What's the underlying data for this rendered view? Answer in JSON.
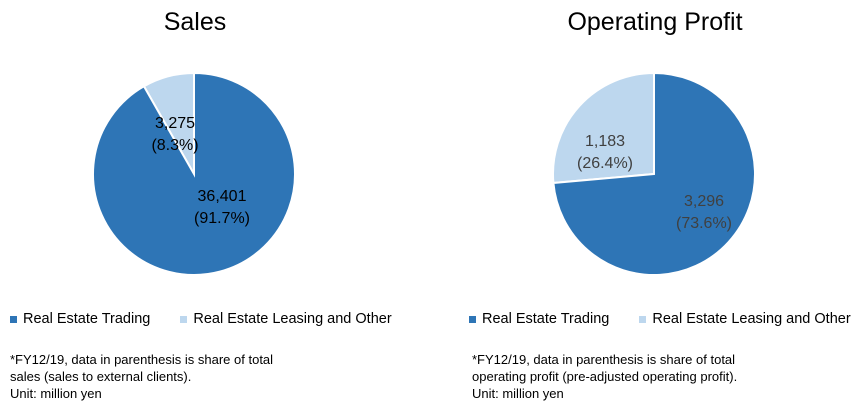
{
  "colors": {
    "real_estate_trading": "#2e75b6",
    "real_estate_leasing": "#bdd7ee",
    "border": "#ffffff"
  },
  "legend": {
    "trading": "Real Estate Trading",
    "leasing": "Real Estate Leasing and Other"
  },
  "chart_data": [
    {
      "type": "pie",
      "title": "Sales",
      "labels": [
        "Real Estate Leasing and Other",
        "Real Estate Trading"
      ],
      "values": [
        3275,
        36401
      ],
      "value_labels": [
        "3,275",
        "36,401"
      ],
      "percent_labels": [
        "(8.3%)",
        "(91.7%)"
      ],
      "legend_position": "bottom"
    },
    {
      "type": "pie",
      "title": "Operating Profit",
      "labels": [
        "Real Estate Leasing and Other",
        "Real Estate Trading"
      ],
      "values": [
        1183,
        3296
      ],
      "value_labels": [
        "1,183",
        "3,296"
      ],
      "percent_labels": [
        "(26.4%)",
        "(73.6%)"
      ],
      "legend_position": "bottom"
    }
  ],
  "notes": {
    "sales": [
      "*FY12/19, data in parenthesis is share of total",
      "sales (sales to external clients).",
      "Unit: million yen"
    ],
    "profit": [
      "*FY12/19, data in parenthesis is share of total",
      "operating profit (pre-adjusted operating profit).",
      "Unit: million yen"
    ]
  }
}
